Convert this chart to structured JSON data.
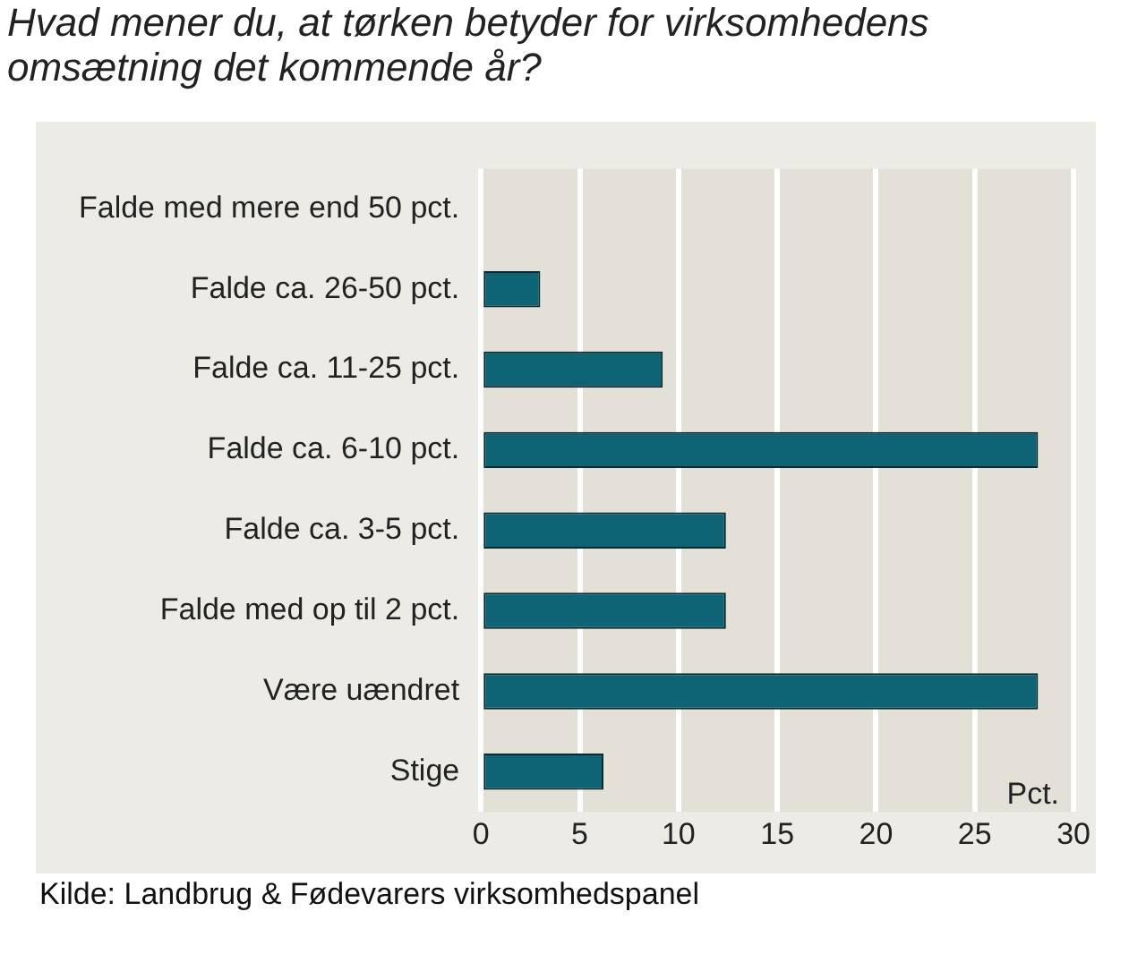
{
  "chart_data": {
    "type": "bar",
    "orientation": "horizontal",
    "title": "Hvad mener du, at tørken betyder for virksomhedens omsætning det kommende år?",
    "categories": [
      "Falde med mere end 50 pct.",
      "Falde ca. 26-50 pct.",
      "Falde ca. 11-25 pct.",
      "Falde ca. 6-10 pct.",
      "Falde ca. 3-5 pct.",
      "Falde med op til 2 pct.",
      "Være uændret",
      "Stige"
    ],
    "values": [
      0,
      3,
      9.2,
      28.2,
      12.4,
      12.4,
      28.2,
      6.2
    ],
    "color": "#0e6474",
    "xlabel": "Pct.",
    "xlim": [
      0,
      30
    ],
    "xticks": [
      0,
      5,
      10,
      15,
      20,
      25,
      30
    ],
    "grid": "x",
    "legend": false,
    "annotations": [
      "Kilde: Landbrug & Fødevarers virksomhedspanel"
    ]
  }
}
